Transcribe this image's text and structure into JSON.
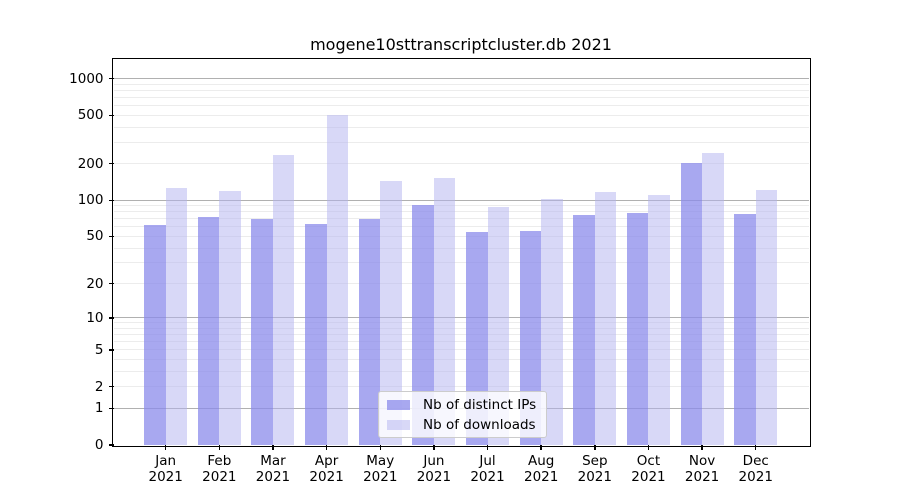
{
  "page": {
    "background": "#ffffff"
  },
  "chart_data": {
    "type": "bar",
    "title": "mogene10sttranscriptcluster.db 2021",
    "categories": [
      "Jan",
      "Feb",
      "Mar",
      "Apr",
      "May",
      "Jun",
      "Jul",
      "Aug",
      "Sep",
      "Oct",
      "Nov",
      "Dec"
    ],
    "category_year": "2021",
    "series": [
      {
        "name": "Nb of distinct IPs",
        "color": "rgba(139,139,235,0.75)",
        "values": [
          62,
          72,
          70,
          63,
          70,
          91,
          54,
          56,
          76,
          78,
          202,
          77
        ]
      },
      {
        "name": "Nb of downloads",
        "color": "rgba(177,177,239,0.5)",
        "values": [
          127,
          119,
          235,
          505,
          143,
          153,
          88,
          102,
          118,
          111,
          244,
          121
        ]
      }
    ],
    "xlabel": "",
    "ylabel": "",
    "y_ticks": [
      0,
      1,
      2,
      5,
      10,
      20,
      50,
      100,
      200,
      500,
      1000
    ],
    "y_scale": "log1p",
    "ylim": [
      0,
      1420
    ],
    "grid": "on",
    "legend_position": "lower-center",
    "colors": {
      "grid_major": "#b0b0b0",
      "grid_minor": "#ececec",
      "spine": "#000000",
      "text": "#000000"
    }
  }
}
